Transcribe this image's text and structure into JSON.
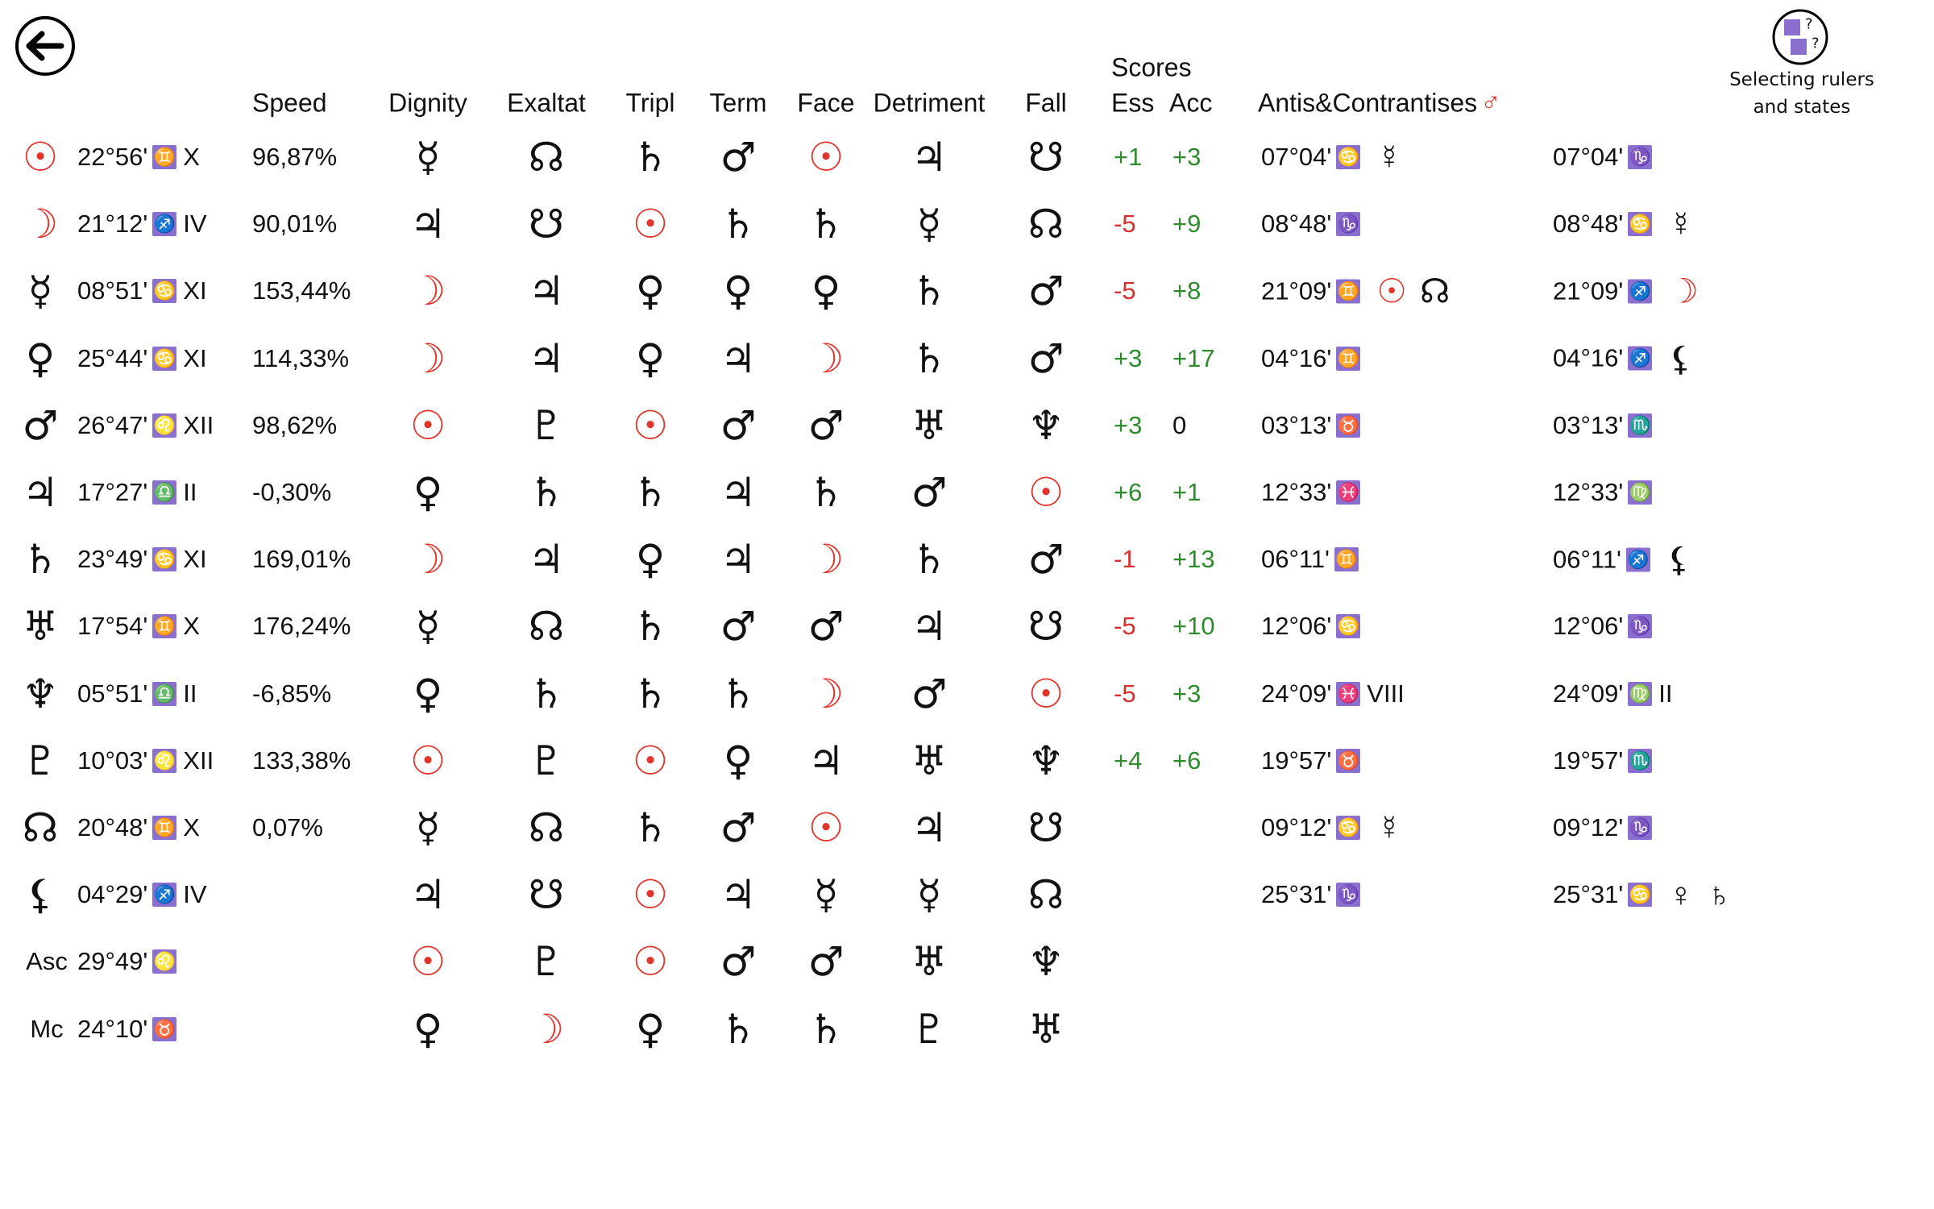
{
  "header": {
    "speed": "Speed",
    "dignity": "Dignity",
    "exaltation": "Exaltat",
    "triplicity": "Tripl",
    "term": "Term",
    "face": "Face",
    "detriment": "Detriment",
    "fall": "Fall",
    "scores": "Scores",
    "ess": "Ess",
    "acc": "Acc",
    "antis": "Antis&Contrantises",
    "antis_symbol": "♂"
  },
  "help_button": {
    "icon_text": [
      "?",
      "?"
    ],
    "lines": [
      "Selecting rulers",
      "and states"
    ]
  },
  "rows": [
    {
      "body": "☉",
      "pos": "22°56'",
      "sign": "♊",
      "house": "X",
      "speed": "96,87%",
      "rulers": [
        "☿",
        "☊",
        "♄",
        "♂",
        "☉",
        "♃",
        "☋"
      ],
      "ess": "+1",
      "acc": "+3",
      "antis": {
        "pos": "07°04'",
        "sign": "♋",
        "extra": [
          "☿"
        ]
      },
      "contra": {
        "pos": "07°04'",
        "sign": "♑"
      }
    },
    {
      "body": "☽",
      "pos": "21°12'",
      "sign": "♐",
      "house": "IV",
      "speed": "90,01%",
      "rulers": [
        "♃",
        "☋",
        "☉",
        "♄",
        "♄",
        "☿",
        "☊"
      ],
      "ess": "-5",
      "acc": "+9",
      "antis": {
        "pos": "08°48'",
        "sign": "♑"
      },
      "contra": {
        "pos": "08°48'",
        "sign": "♋",
        "extra": [
          "☿"
        ]
      }
    },
    {
      "body": "☿",
      "pos": "08°51'",
      "sign": "♋",
      "house": "XI",
      "speed": "153,44%",
      "rulers": [
        "☽",
        "♃",
        "♀",
        "♀",
        "♀",
        "♄",
        "♂"
      ],
      "ess": "-5",
      "acc": "+8",
      "antis": {
        "pos": "21°09'",
        "sign": "♊",
        "extra": [
          "☉",
          "☊"
        ]
      },
      "contra": {
        "pos": "21°09'",
        "sign": "♐",
        "extra": [
          "☽"
        ]
      }
    },
    {
      "body": "♀",
      "pos": "25°44'",
      "sign": "♋",
      "house": "XI",
      "speed": "114,33%",
      "rulers": [
        "☽",
        "♃",
        "♀",
        "♃",
        "☽",
        "♄",
        "♂"
      ],
      "ess": "+3",
      "acc": "+17",
      "antis": {
        "pos": "04°16'",
        "sign": "♊"
      },
      "contra": {
        "pos": "04°16'",
        "sign": "♐",
        "extra": [
          "⚸"
        ]
      }
    },
    {
      "body": "♂",
      "pos": "26°47'",
      "sign": "♌",
      "house": "XII",
      "speed": "98,62%",
      "rulers": [
        "☉",
        "♇",
        "☉",
        "♂",
        "♂",
        "♅",
        "♆"
      ],
      "ess": "+3",
      "acc": "0",
      "antis": {
        "pos": "03°13'",
        "sign": "♉"
      },
      "contra": {
        "pos": "03°13'",
        "sign": "♏"
      }
    },
    {
      "body": "♃",
      "pos": "17°27'",
      "sign": "♎",
      "house": "II",
      "speed": "-0,30%",
      "rulers": [
        "♀",
        "♄",
        "♄",
        "♃",
        "♄",
        "♂",
        "☉"
      ],
      "ess": "+6",
      "acc": "+1",
      "antis": {
        "pos": "12°33'",
        "sign": "♓"
      },
      "contra": {
        "pos": "12°33'",
        "sign": "♍"
      }
    },
    {
      "body": "♄",
      "pos": "23°49'",
      "sign": "♋",
      "house": "XI",
      "speed": "169,01%",
      "rulers": [
        "☽",
        "♃",
        "♀",
        "♃",
        "☽",
        "♄",
        "♂"
      ],
      "ess": "-1",
      "acc": "+13",
      "antis": {
        "pos": "06°11'",
        "sign": "♊"
      },
      "contra": {
        "pos": "06°11'",
        "sign": "♐",
        "extra": [
          "⚸"
        ]
      }
    },
    {
      "body": "♅",
      "pos": "17°54'",
      "sign": "♊",
      "house": "X",
      "speed": "176,24%",
      "rulers": [
        "☿",
        "☊",
        "♄",
        "♂",
        "♂",
        "♃",
        "☋"
      ],
      "ess": "-5",
      "acc": "+10",
      "antis": {
        "pos": "12°06'",
        "sign": "♋"
      },
      "contra": {
        "pos": "12°06'",
        "sign": "♑"
      }
    },
    {
      "body": "♆",
      "pos": "05°51'",
      "sign": "♎",
      "house": "II",
      "speed": "-6,85%",
      "rulers": [
        "♀",
        "♄",
        "♄",
        "♄",
        "☽",
        "♂",
        "☉"
      ],
      "ess": "-5",
      "acc": "+3",
      "antis": {
        "pos": "24°09'",
        "sign": "♓",
        "house": "VIII"
      },
      "contra": {
        "pos": "24°09'",
        "sign": "♍",
        "house": "II"
      }
    },
    {
      "body": "♇",
      "pos": "10°03'",
      "sign": "♌",
      "house": "XII",
      "speed": "133,38%",
      "rulers": [
        "☉",
        "♇",
        "☉",
        "♀",
        "♃",
        "♅",
        "♆"
      ],
      "ess": "+4",
      "acc": "+6",
      "antis": {
        "pos": "19°57'",
        "sign": "♉"
      },
      "contra": {
        "pos": "19°57'",
        "sign": "♏"
      }
    },
    {
      "body": "☊",
      "pos": "20°48'",
      "sign": "♊",
      "house": "X",
      "speed": "0,07%",
      "rulers": [
        "☿",
        "☊",
        "♄",
        "♂",
        "☉",
        "♃",
        "☋"
      ],
      "antis": {
        "pos": "09°12'",
        "sign": "♋",
        "extra": [
          "☿"
        ]
      },
      "contra": {
        "pos": "09°12'",
        "sign": "♑"
      }
    },
    {
      "body": "⚸",
      "pos": "04°29'",
      "sign": "♐",
      "house": "IV",
      "rulers": [
        "♃",
        "☋",
        "☉",
        "♃",
        "☿",
        "☿",
        "☊"
      ],
      "antis": {
        "pos": "25°31'",
        "sign": "♑"
      },
      "contra": {
        "pos": "25°31'",
        "sign": "♋",
        "extra": [
          "♀",
          "♄"
        ]
      }
    },
    {
      "body": "Asc",
      "pos": "29°49'",
      "sign": "♌",
      "rulers": [
        "☉",
        "♇",
        "☉",
        "♂",
        "♂",
        "♅",
        "♆"
      ]
    },
    {
      "body": "Mc",
      "pos": "24°10'",
      "sign": "♉",
      "rulers": [
        "♀",
        "☽",
        "♀",
        "♄",
        "♄",
        "♇",
        "♅"
      ]
    }
  ]
}
